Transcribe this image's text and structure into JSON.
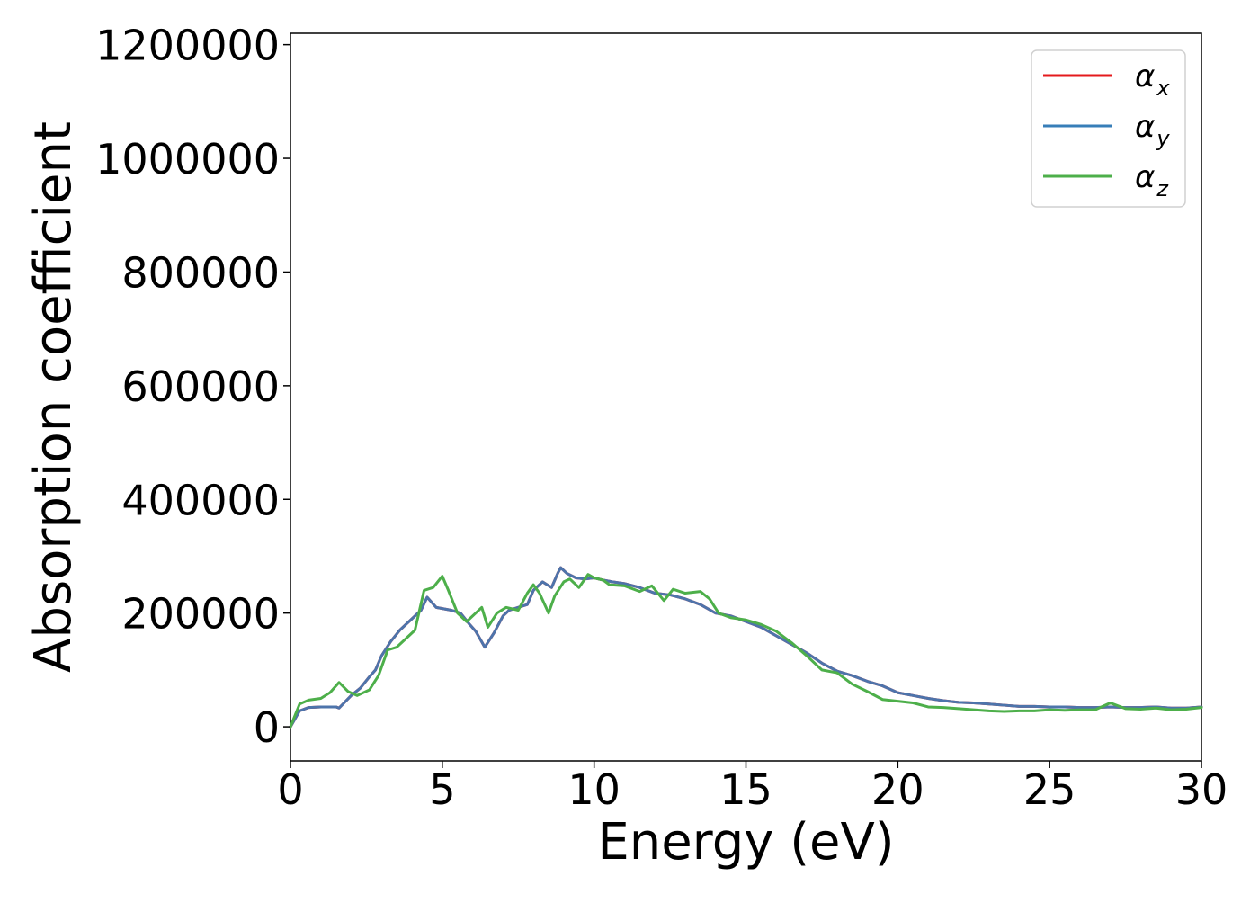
{
  "chart_data": {
    "type": "line",
    "title": "",
    "xlabel": "Energy (eV)",
    "ylabel": "Absorption coefficient",
    "xlim": [
      0,
      30
    ],
    "ylim": [
      -60000,
      1220000
    ],
    "xticks": [
      0,
      5,
      10,
      15,
      20,
      25,
      30
    ],
    "yticks": [
      0,
      200000,
      400000,
      600000,
      800000,
      1000000,
      1200000
    ],
    "xtick_labels": [
      "0",
      "5",
      "10",
      "15",
      "20",
      "25",
      "30"
    ],
    "ytick_labels": [
      "0",
      "200000",
      "400000",
      "600000",
      "800000",
      "1000000",
      "1200000"
    ],
    "grid": false,
    "legend_position": "top-right",
    "legend": [
      {
        "base": "α",
        "sub": "x",
        "color": "#e41a1c"
      },
      {
        "base": "α",
        "sub": "y",
        "color": "#377eb8"
      },
      {
        "base": "α",
        "sub": "z",
        "color": "#4daf4a"
      }
    ],
    "series": [
      {
        "color": "#e41a1c",
        "points": [
          [
            0,
            0
          ],
          [
            0.3,
            28000
          ],
          [
            0.6,
            34000
          ],
          [
            1.0,
            35000
          ],
          [
            1.5,
            35000
          ],
          [
            1.6,
            33000
          ],
          [
            2.0,
            55000
          ],
          [
            2.3,
            68000
          ],
          [
            2.6,
            88000
          ],
          [
            2.8,
            100000
          ],
          [
            3.0,
            125000
          ],
          [
            3.3,
            150000
          ],
          [
            3.6,
            170000
          ],
          [
            4.0,
            190000
          ],
          [
            4.3,
            205000
          ],
          [
            4.5,
            228000
          ],
          [
            4.8,
            210000
          ],
          [
            5.0,
            208000
          ],
          [
            5.3,
            205000
          ],
          [
            5.6,
            200000
          ],
          [
            5.9,
            180000
          ],
          [
            6.1,
            168000
          ],
          [
            6.4,
            140000
          ],
          [
            6.7,
            165000
          ],
          [
            7.0,
            195000
          ],
          [
            7.2,
            205000
          ],
          [
            7.5,
            210000
          ],
          [
            7.8,
            215000
          ],
          [
            8.0,
            240000
          ],
          [
            8.3,
            255000
          ],
          [
            8.6,
            245000
          ],
          [
            8.8,
            270000
          ],
          [
            8.9,
            280000
          ],
          [
            9.1,
            270000
          ],
          [
            9.4,
            262000
          ],
          [
            9.7,
            260000
          ],
          [
            10.0,
            262000
          ],
          [
            10.3,
            258000
          ],
          [
            10.6,
            255000
          ],
          [
            11.0,
            252000
          ],
          [
            11.5,
            245000
          ],
          [
            12.0,
            235000
          ],
          [
            12.5,
            232000
          ],
          [
            13.0,
            225000
          ],
          [
            13.5,
            215000
          ],
          [
            14.0,
            200000
          ],
          [
            14.5,
            195000
          ],
          [
            15.0,
            185000
          ],
          [
            15.5,
            175000
          ],
          [
            16.0,
            160000
          ],
          [
            16.5,
            145000
          ],
          [
            17.0,
            130000
          ],
          [
            17.5,
            112000
          ],
          [
            18.0,
            98000
          ],
          [
            18.5,
            90000
          ],
          [
            19.0,
            80000
          ],
          [
            19.5,
            72000
          ],
          [
            20.0,
            60000
          ],
          [
            20.5,
            55000
          ],
          [
            21.0,
            50000
          ],
          [
            21.5,
            46000
          ],
          [
            22.0,
            43000
          ],
          [
            22.5,
            42000
          ],
          [
            23.0,
            40000
          ],
          [
            23.5,
            38000
          ],
          [
            24.0,
            36000
          ],
          [
            24.5,
            36000
          ],
          [
            25.0,
            35000
          ],
          [
            25.5,
            35000
          ],
          [
            26.0,
            34000
          ],
          [
            26.5,
            34000
          ],
          [
            27.0,
            35000
          ],
          [
            27.5,
            34000
          ],
          [
            28.0,
            34000
          ],
          [
            28.5,
            35000
          ],
          [
            29.0,
            33000
          ],
          [
            29.5,
            33000
          ],
          [
            30.0,
            35000
          ]
        ]
      },
      {
        "color": "#4d74ab",
        "points": [
          [
            0,
            0
          ],
          [
            0.3,
            28000
          ],
          [
            0.6,
            34000
          ],
          [
            1.0,
            35000
          ],
          [
            1.5,
            35000
          ],
          [
            1.6,
            33000
          ],
          [
            2.0,
            55000
          ],
          [
            2.3,
            68000
          ],
          [
            2.6,
            88000
          ],
          [
            2.8,
            100000
          ],
          [
            3.0,
            125000
          ],
          [
            3.3,
            150000
          ],
          [
            3.6,
            170000
          ],
          [
            4.0,
            190000
          ],
          [
            4.3,
            205000
          ],
          [
            4.5,
            228000
          ],
          [
            4.8,
            210000
          ],
          [
            5.0,
            208000
          ],
          [
            5.3,
            205000
          ],
          [
            5.6,
            200000
          ],
          [
            5.9,
            180000
          ],
          [
            6.1,
            168000
          ],
          [
            6.4,
            140000
          ],
          [
            6.7,
            165000
          ],
          [
            7.0,
            195000
          ],
          [
            7.2,
            205000
          ],
          [
            7.5,
            210000
          ],
          [
            7.8,
            215000
          ],
          [
            8.0,
            240000
          ],
          [
            8.3,
            255000
          ],
          [
            8.6,
            245000
          ],
          [
            8.8,
            270000
          ],
          [
            8.9,
            280000
          ],
          [
            9.1,
            270000
          ],
          [
            9.4,
            262000
          ],
          [
            9.7,
            260000
          ],
          [
            10.0,
            262000
          ],
          [
            10.3,
            258000
          ],
          [
            10.6,
            255000
          ],
          [
            11.0,
            252000
          ],
          [
            11.5,
            245000
          ],
          [
            12.0,
            235000
          ],
          [
            12.5,
            232000
          ],
          [
            13.0,
            225000
          ],
          [
            13.5,
            215000
          ],
          [
            14.0,
            200000
          ],
          [
            14.5,
            195000
          ],
          [
            15.0,
            185000
          ],
          [
            15.5,
            175000
          ],
          [
            16.0,
            160000
          ],
          [
            16.5,
            145000
          ],
          [
            17.0,
            130000
          ],
          [
            17.5,
            112000
          ],
          [
            18.0,
            98000
          ],
          [
            18.5,
            90000
          ],
          [
            19.0,
            80000
          ],
          [
            19.5,
            72000
          ],
          [
            20.0,
            60000
          ],
          [
            20.5,
            55000
          ],
          [
            21.0,
            50000
          ],
          [
            21.5,
            46000
          ],
          [
            22.0,
            43000
          ],
          [
            22.5,
            42000
          ],
          [
            23.0,
            40000
          ],
          [
            23.5,
            38000
          ],
          [
            24.0,
            36000
          ],
          [
            24.5,
            36000
          ],
          [
            25.0,
            35000
          ],
          [
            25.5,
            35000
          ],
          [
            26.0,
            34000
          ],
          [
            26.5,
            34000
          ],
          [
            27.0,
            35000
          ],
          [
            27.5,
            34000
          ],
          [
            28.0,
            34000
          ],
          [
            28.5,
            35000
          ],
          [
            29.0,
            33000
          ],
          [
            29.5,
            33000
          ],
          [
            30.0,
            35000
          ]
        ]
      },
      {
        "color": "#4daf4a",
        "points": [
          [
            0,
            0
          ],
          [
            0.3,
            40000
          ],
          [
            0.6,
            47000
          ],
          [
            1.0,
            50000
          ],
          [
            1.3,
            60000
          ],
          [
            1.6,
            78000
          ],
          [
            1.9,
            62000
          ],
          [
            2.2,
            55000
          ],
          [
            2.6,
            65000
          ],
          [
            2.9,
            90000
          ],
          [
            3.2,
            135000
          ],
          [
            3.5,
            140000
          ],
          [
            3.8,
            155000
          ],
          [
            4.1,
            170000
          ],
          [
            4.4,
            240000
          ],
          [
            4.7,
            245000
          ],
          [
            5.0,
            265000
          ],
          [
            5.2,
            240000
          ],
          [
            5.5,
            200000
          ],
          [
            5.8,
            185000
          ],
          [
            6.1,
            200000
          ],
          [
            6.3,
            210000
          ],
          [
            6.5,
            175000
          ],
          [
            6.8,
            200000
          ],
          [
            7.1,
            210000
          ],
          [
            7.5,
            205000
          ],
          [
            7.8,
            235000
          ],
          [
            8.0,
            250000
          ],
          [
            8.2,
            235000
          ],
          [
            8.5,
            200000
          ],
          [
            8.7,
            230000
          ],
          [
            9.0,
            255000
          ],
          [
            9.2,
            260000
          ],
          [
            9.5,
            245000
          ],
          [
            9.8,
            268000
          ],
          [
            10.0,
            262000
          ],
          [
            10.3,
            258000
          ],
          [
            10.5,
            250000
          ],
          [
            11.0,
            248000
          ],
          [
            11.5,
            238000
          ],
          [
            11.9,
            248000
          ],
          [
            12.3,
            222000
          ],
          [
            12.6,
            242000
          ],
          [
            13.0,
            235000
          ],
          [
            13.5,
            238000
          ],
          [
            13.8,
            225000
          ],
          [
            14.1,
            200000
          ],
          [
            14.5,
            192000
          ],
          [
            15.0,
            188000
          ],
          [
            15.5,
            180000
          ],
          [
            16.0,
            168000
          ],
          [
            16.5,
            148000
          ],
          [
            17.0,
            125000
          ],
          [
            17.5,
            100000
          ],
          [
            18.0,
            95000
          ],
          [
            18.5,
            75000
          ],
          [
            19.0,
            62000
          ],
          [
            19.5,
            48000
          ],
          [
            20.0,
            45000
          ],
          [
            20.5,
            42000
          ],
          [
            21.0,
            35000
          ],
          [
            21.5,
            34000
          ],
          [
            22.0,
            32000
          ],
          [
            22.5,
            30000
          ],
          [
            23.0,
            28000
          ],
          [
            23.5,
            27000
          ],
          [
            24.0,
            28000
          ],
          [
            24.5,
            28000
          ],
          [
            25.0,
            30000
          ],
          [
            25.5,
            29000
          ],
          [
            26.0,
            30000
          ],
          [
            26.5,
            30000
          ],
          [
            27.0,
            42000
          ],
          [
            27.5,
            32000
          ],
          [
            28.0,
            31000
          ],
          [
            28.5,
            33000
          ],
          [
            29.0,
            30000
          ],
          [
            29.5,
            31000
          ],
          [
            30.0,
            34000
          ]
        ]
      }
    ]
  }
}
